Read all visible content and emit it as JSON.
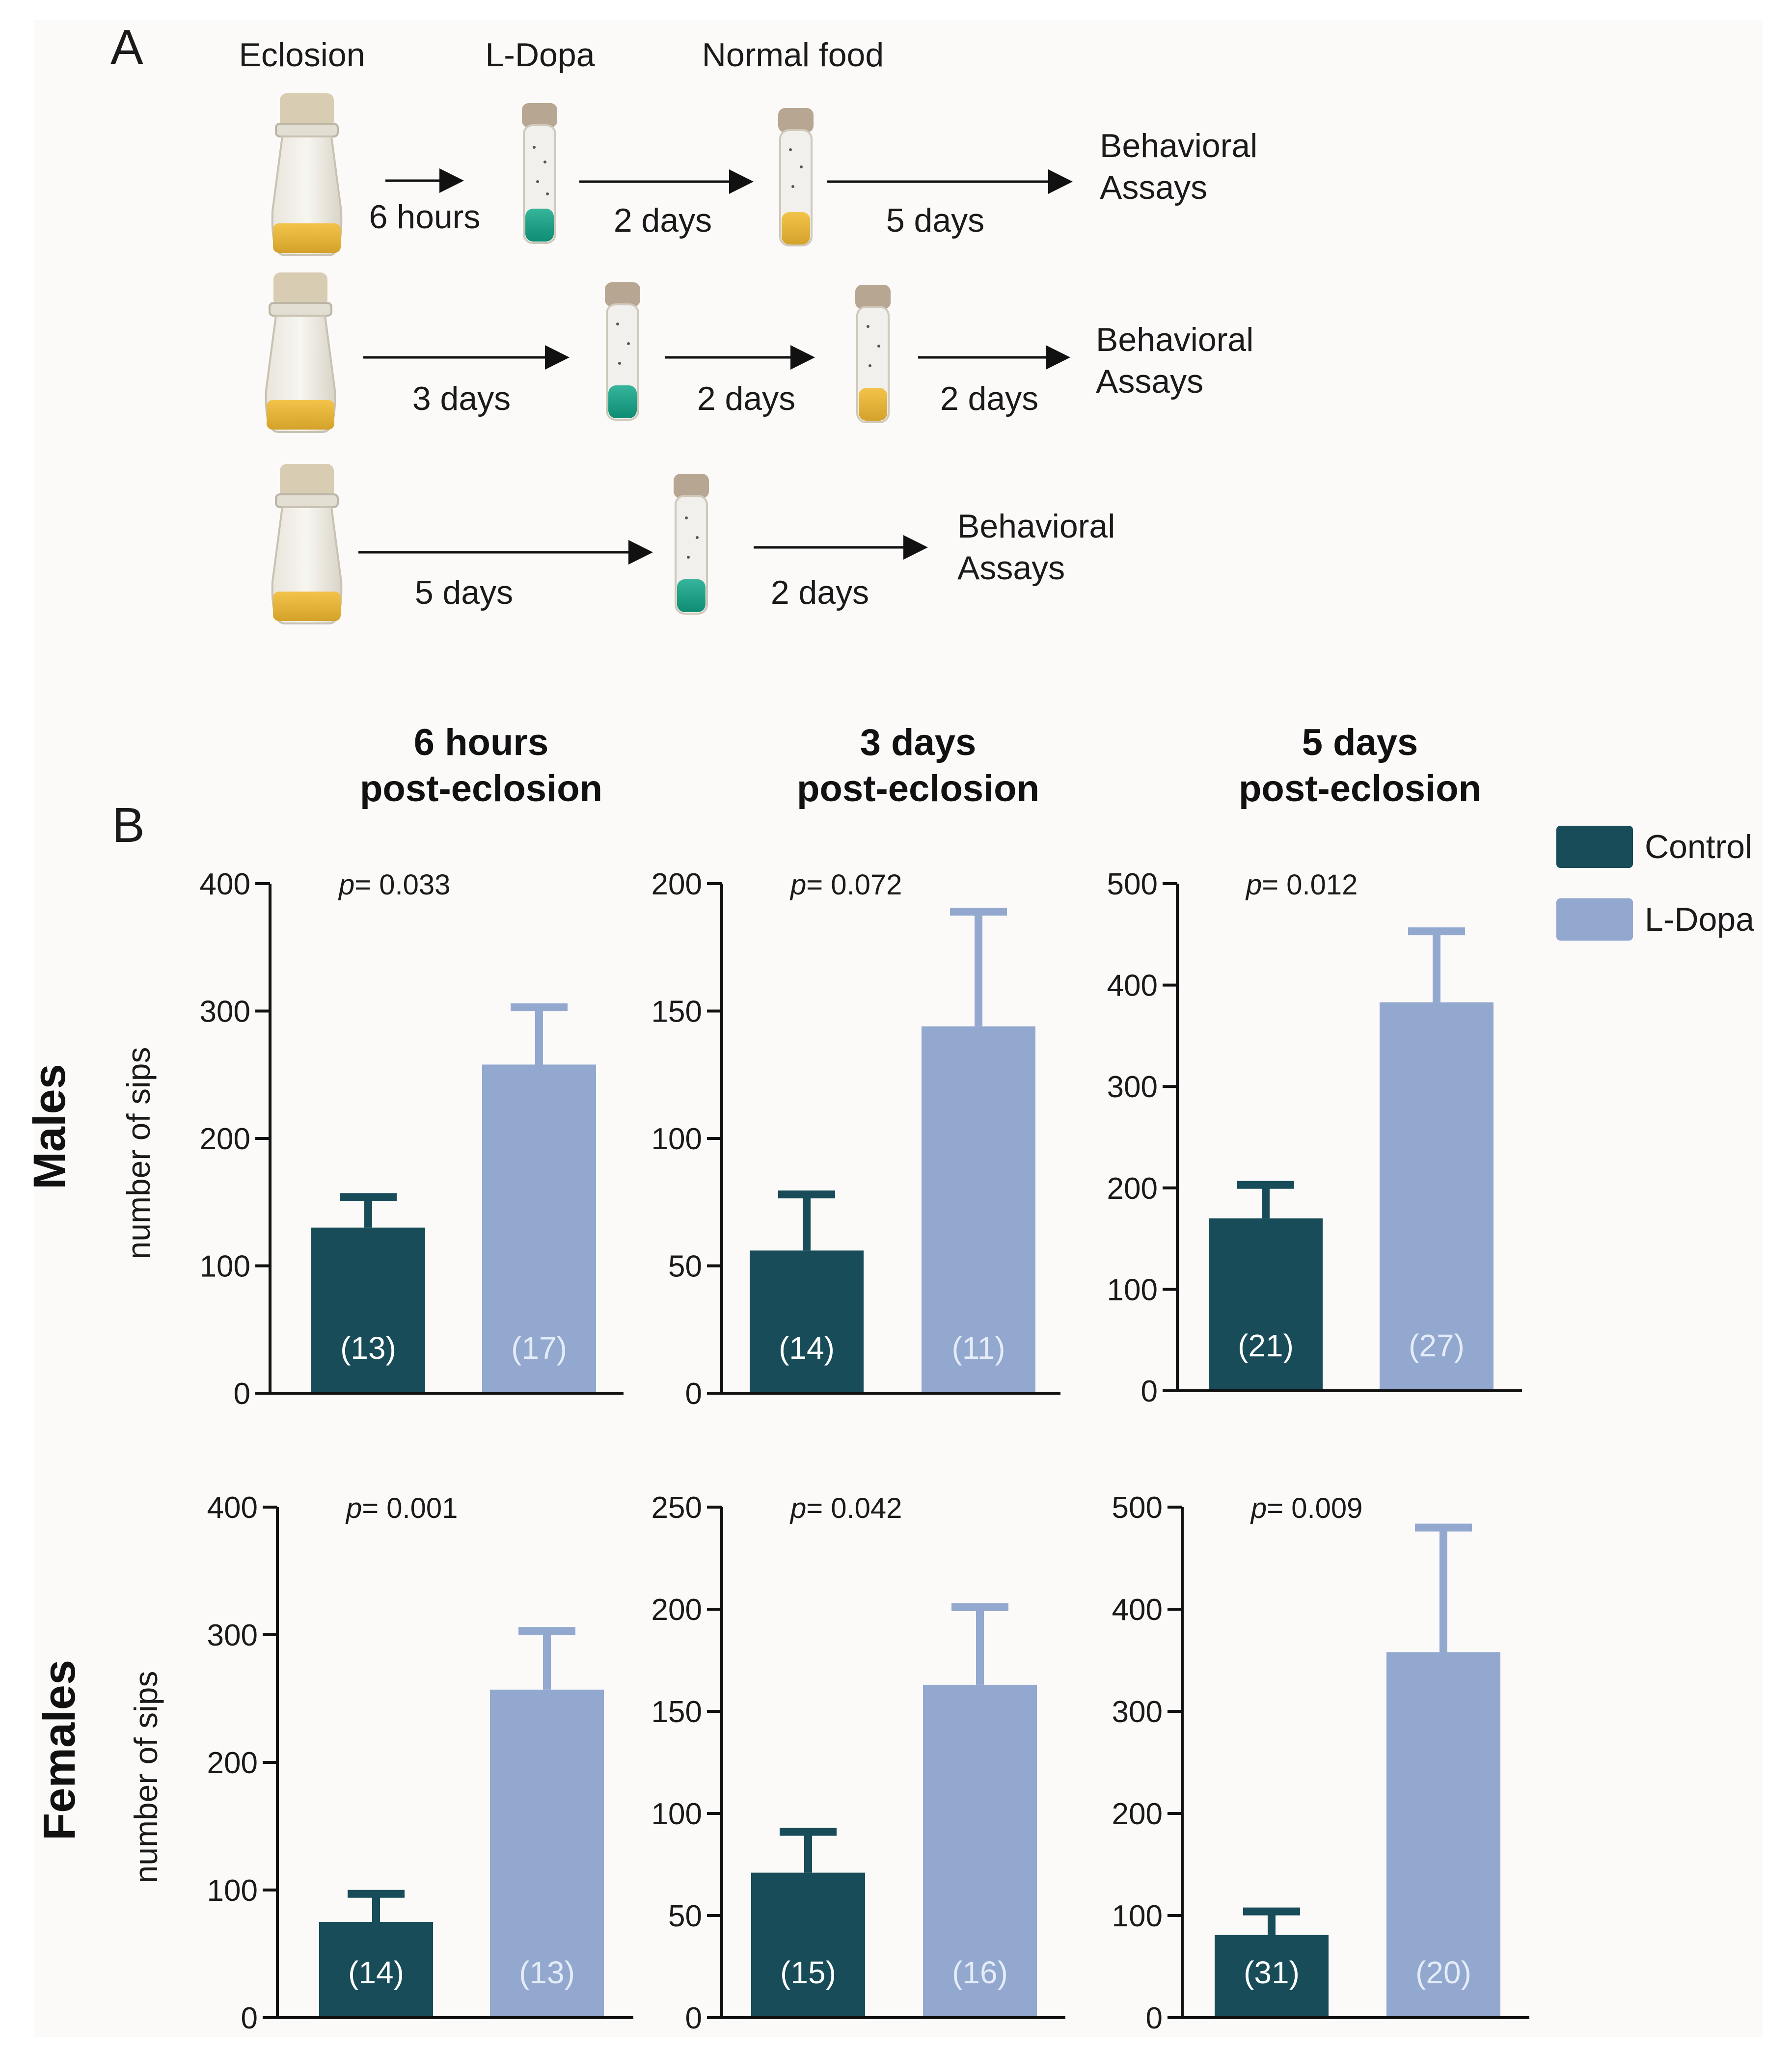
{
  "panel_a": {
    "label": "A",
    "headers": {
      "eclosion": "Eclosion",
      "ldopa": "L-Dopa",
      "normal_food": "Normal food"
    },
    "rows": [
      {
        "durations": [
          "6 hours",
          "2 days",
          "5 days"
        ],
        "result_line1": "Behavioral",
        "result_line2": "Assays"
      },
      {
        "durations": [
          "3 days",
          "2 days",
          "2 days"
        ],
        "result_line1": "Behavioral",
        "result_line2": "Assays"
      },
      {
        "durations": [
          "5 days",
          "2 days"
        ],
        "result_line1": "Behavioral",
        "result_line2": "Assays"
      }
    ]
  },
  "panel_b": {
    "label": "B",
    "col_titles": [
      {
        "line1": "6 hours",
        "line2": "post-eclosion"
      },
      {
        "line1": "3 days",
        "line2": "post-eclosion"
      },
      {
        "line1": "5 days",
        "line2": "post-eclosion"
      }
    ],
    "row_labels": [
      "Males",
      "Females"
    ],
    "legend": {
      "control": "Control",
      "ldopa": "L-Dopa"
    }
  },
  "colors": {
    "control": "#174c58",
    "ldopa": "#93a8cf",
    "text": "#1a1a1a",
    "n_control": "#ffffff",
    "n_ldopa": "#e4ecf8"
  },
  "chart_data": [
    {
      "type": "bar",
      "sex": "Males",
      "title": "6 hours post-eclosion",
      "ylabel": "number of sips",
      "ylim": [
        0,
        400
      ],
      "ticks": [
        0,
        100,
        200,
        300,
        400
      ],
      "categories": [
        "Control",
        "L-Dopa"
      ],
      "values": [
        130,
        258
      ],
      "errors": [
        24,
        45
      ],
      "n_labels": [
        "(13)",
        "(17)"
      ],
      "p_prefix": "p",
      "p_value": "= 0.033"
    },
    {
      "type": "bar",
      "sex": "Males",
      "title": "3 days post-eclosion",
      "ylabel": "",
      "ylim": [
        0,
        200
      ],
      "ticks": [
        0,
        50,
        100,
        150,
        200
      ],
      "categories": [
        "Control",
        "L-Dopa"
      ],
      "values": [
        56,
        144
      ],
      "errors": [
        22,
        45
      ],
      "n_labels": [
        "(14)",
        "(11)"
      ],
      "p_prefix": "p",
      "p_value": "= 0.072"
    },
    {
      "type": "bar",
      "sex": "Males",
      "title": "5 days post-eclosion",
      "ylabel": "",
      "ylim": [
        0,
        500
      ],
      "ticks": [
        0,
        100,
        200,
        300,
        400,
        500
      ],
      "categories": [
        "Control",
        "L-Dopa"
      ],
      "values": [
        170,
        383
      ],
      "errors": [
        33,
        70
      ],
      "n_labels": [
        "(21)",
        "(27)"
      ],
      "p_prefix": "p",
      "p_value": "= 0.012"
    },
    {
      "type": "bar",
      "sex": "Females",
      "title": "6 hours post-eclosion",
      "ylabel": "number of sips",
      "ylim": [
        0,
        400
      ],
      "ticks": [
        0,
        100,
        200,
        300,
        400
      ],
      "categories": [
        "Control",
        "L-Dopa"
      ],
      "values": [
        75,
        257
      ],
      "errors": [
        22,
        46
      ],
      "n_labels": [
        "(14)",
        "(13)"
      ],
      "p_prefix": "p",
      "p_value": "= 0.001"
    },
    {
      "type": "bar",
      "sex": "Females",
      "title": "3 days post-eclosion",
      "ylabel": "",
      "ylim": [
        0,
        250
      ],
      "ticks": [
        0,
        50,
        100,
        150,
        200,
        250
      ],
      "categories": [
        "Control",
        "L-Dopa"
      ],
      "values": [
        71,
        163
      ],
      "errors": [
        20,
        38
      ],
      "n_labels": [
        "(15)",
        "(16)"
      ],
      "p_prefix": "p",
      "p_value": "= 0.042"
    },
    {
      "type": "bar",
      "sex": "Females",
      "title": "5 days post-eclosion",
      "ylabel": "",
      "ylim": [
        0,
        500
      ],
      "ticks": [
        0,
        100,
        200,
        300,
        400,
        500
      ],
      "categories": [
        "Control",
        "L-Dopa"
      ],
      "values": [
        81,
        358
      ],
      "errors": [
        23,
        122
      ],
      "n_labels": [
        "(31)",
        "(20)"
      ],
      "p_prefix": "p",
      "p_value": "= 0.009"
    }
  ]
}
